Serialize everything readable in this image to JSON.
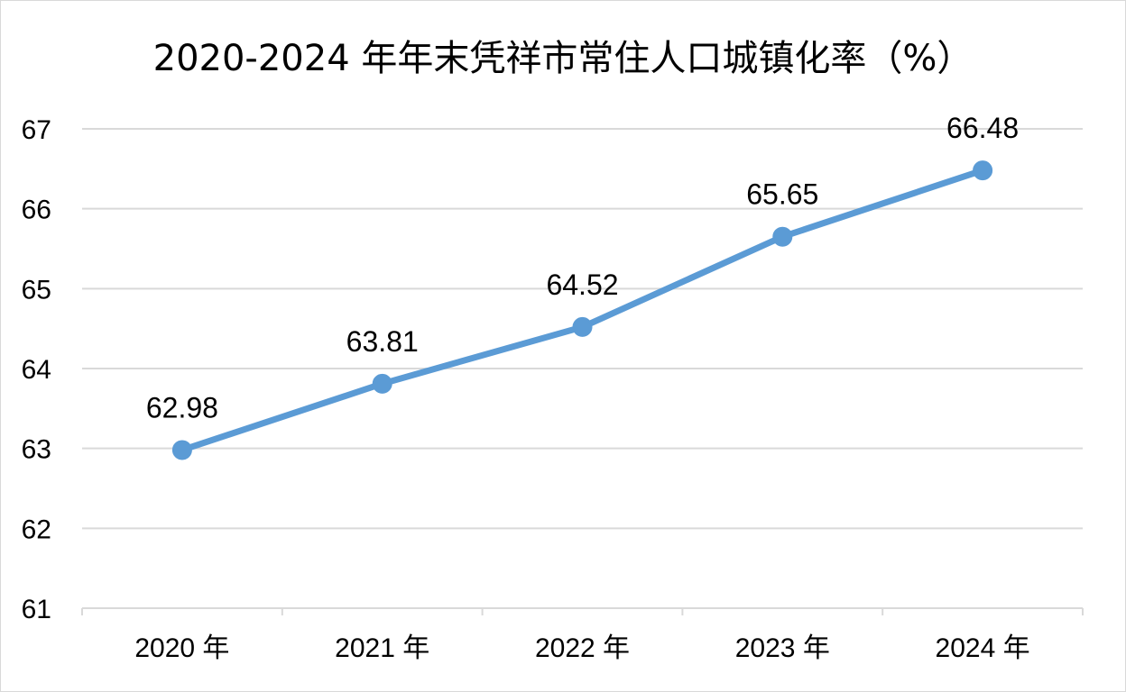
{
  "chart_data": {
    "type": "line",
    "title": "2020-2024 年年末凭祥市常住人口城镇化率（%）",
    "categories": [
      "2020 年",
      "2021 年",
      "2022 年",
      "2023 年",
      "2024 年"
    ],
    "series": [
      {
        "values": [
          62.98,
          63.81,
          64.52,
          65.65,
          66.48
        ],
        "color": "#5B9BD5"
      }
    ],
    "data_labels": [
      "62.98",
      "63.81",
      "64.52",
      "65.65",
      "66.48"
    ],
    "ylim": [
      61,
      67
    ],
    "yticks": [
      "61",
      "62",
      "63",
      "64",
      "65",
      "66",
      "67"
    ],
    "grid": true,
    "legend": "none"
  }
}
